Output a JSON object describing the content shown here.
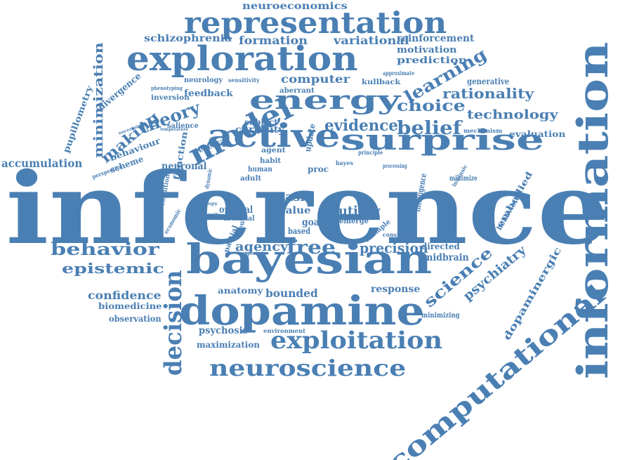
{
  "colors": {
    "word": "#4a7fb3",
    "background": "#ffffff"
  },
  "words": [
    "inference",
    "information",
    "bayesian",
    "dopamine",
    "exploration",
    "representation",
    "computational",
    "active",
    "surprise",
    "energy",
    "model",
    "exploitation",
    "neuroscience",
    "decision",
    "behavior",
    "epistemic",
    "free",
    "precision",
    "science",
    "psychiatry",
    "dopaminergic",
    "belief",
    "choice",
    "theory",
    "learning",
    "rationality",
    "technology",
    "evidence",
    "making",
    "minimization",
    "accumulation",
    "neuroeconomics",
    "schizophrenia",
    "formation",
    "variational",
    "reinforcement",
    "motivation",
    "prediction",
    "generative",
    "evaluation",
    "mechanism",
    "computer",
    "curiosity",
    "kullback",
    "pupillometry",
    "divergence",
    "behaviour",
    "scheme",
    "neurology",
    "feedback",
    "inversion",
    "confidence",
    "biomedicine",
    "observation",
    "anatomy",
    "bounded",
    "response",
    "minimizing",
    "psychosis",
    "maximization",
    "environment",
    "agency",
    "utility",
    "value",
    "goal",
    "task",
    "optimal",
    "artificial",
    "neuronal",
    "function",
    "salience",
    "sensitivity",
    "subject",
    "aberrant",
    "reversal",
    "human",
    "adult",
    "agent",
    "habit",
    "update",
    "proc",
    "bayes",
    "embodied",
    "behavioral",
    "midbrain",
    "directed",
    "example",
    "emerge",
    "intelligence",
    "consistent",
    "minimize",
    "intrinsic",
    "principle",
    "processing",
    "approximate",
    "based",
    "neuron",
    "perspective",
    "uncertainty",
    "phenotyping",
    "cognition",
    "temperature",
    "dynamic",
    "economic",
    "entropy",
    "ambiguity",
    "partial",
    "expected"
  ]
}
